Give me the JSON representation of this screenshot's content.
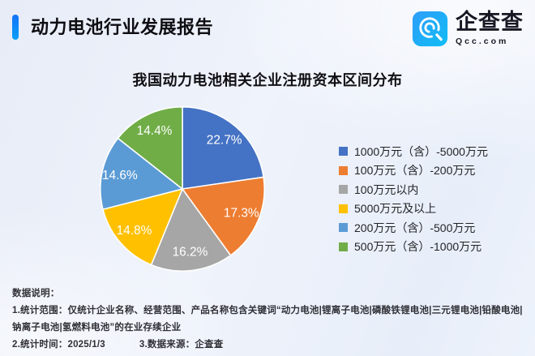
{
  "header": {
    "title": "动力电池行业发展报告",
    "accent_color": "#1273f8",
    "logo": {
      "name": "企查查",
      "domain": "Qcc.com",
      "icon": "qcc-magnifier-logo",
      "icon_color_top": "#2e9df8",
      "icon_color_bottom": "#10bdf6"
    }
  },
  "chart_data": {
    "type": "pie",
    "title": "我国动力电池相关企业注册资本区间分布",
    "value_suffix": "%",
    "start_angle_deg": 0,
    "direction": "clockwise",
    "legend_position": "right",
    "label_style": "inside-white-percent",
    "slices": [
      {
        "label": "1000万元（含）-5000万元",
        "value": 22.7,
        "color": "#4472C4"
      },
      {
        "label": "100万元（含）-200万元",
        "value": 17.3,
        "color": "#ED7D31"
      },
      {
        "label": "100万元以内",
        "value": 16.2,
        "color": "#A6A6A6"
      },
      {
        "label": "5000万元及以上",
        "value": 14.8,
        "color": "#FFC000"
      },
      {
        "label": "200万元（含）-500万元",
        "value": 14.6,
        "color": "#5B9BD5"
      },
      {
        "label": "500万元（含）-1000万元",
        "value": 14.4,
        "color": "#70AD47"
      }
    ]
  },
  "footer": {
    "heading": "数据说明：",
    "note_scope": "1.统计范围：仅统计企业名称、经营范围、产品名称包含关键词“动力电池|锂离子电池|磷酸铁锂电池|三元锂电池|铅酸电池|钠离子电池|氢燃料电池”的在业存续企业",
    "note_time": "2.统计时间：2025/1/3",
    "note_source": "3.数据来源：企查查"
  }
}
